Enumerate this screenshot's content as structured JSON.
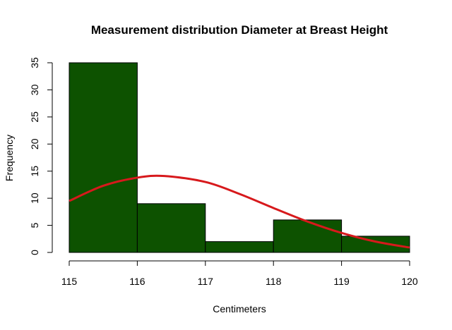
{
  "chart_data": {
    "type": "bar",
    "title": "Measurement distribution Diameter at Breast Height",
    "xlabel": "Centimeters",
    "ylabel": "Frequency",
    "bins": [
      {
        "from": 115,
        "to": 116,
        "count": 35
      },
      {
        "from": 116,
        "to": 117,
        "count": 9
      },
      {
        "from": 117,
        "to": 118,
        "count": 2
      },
      {
        "from": 118,
        "to": 119,
        "count": 6
      },
      {
        "from": 119,
        "to": 120,
        "count": 3
      }
    ],
    "x_ticks": [
      115,
      116,
      117,
      118,
      119,
      120
    ],
    "y_ticks": [
      0,
      5,
      10,
      15,
      20,
      25,
      30,
      35
    ],
    "xlim": [
      115,
      120
    ],
    "ylim": [
      0,
      35
    ],
    "density_curve": {
      "x": [
        115,
        115.5,
        116,
        116.4,
        117,
        117.5,
        118,
        118.5,
        119,
        119.5,
        120
      ],
      "y": [
        9.5,
        12.3,
        13.8,
        14.1,
        13.0,
        10.8,
        8.2,
        5.7,
        3.6,
        2.0,
        0.9
      ]
    },
    "grid": false,
    "legend": "none",
    "colors": {
      "bar_fill": "#0d5200",
      "bar_stroke": "#000000",
      "curve": "#d7191c"
    }
  }
}
